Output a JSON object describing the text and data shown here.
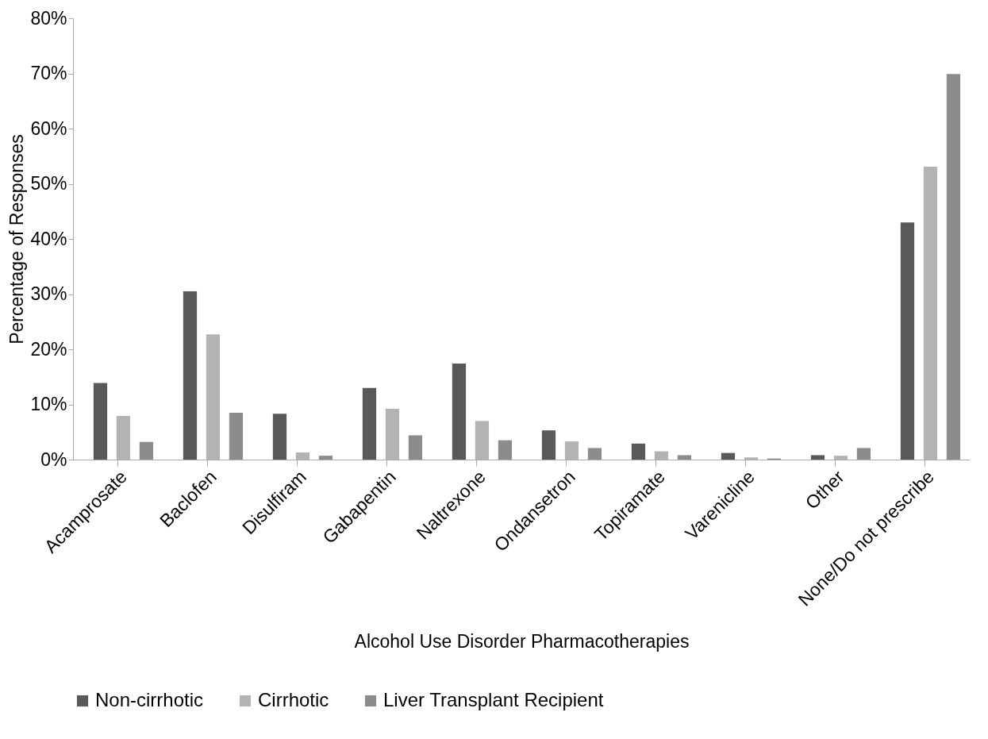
{
  "chart_data": {
    "type": "bar",
    "xlabel": "Alcohol Use Disorder Pharmacotherapies",
    "ylabel": "Percentage of Responses",
    "categories": [
      "Acamprosate",
      "Baclofen",
      "Disulfiram",
      "Gabapentin",
      "Naltrexone",
      "Ondansetron",
      "Topiramate",
      "Varenicline",
      "Other",
      "None/Do not prescribe"
    ],
    "series": [
      {
        "name": "Non-cirrhotic",
        "color": "#595959",
        "values": [
          13.9,
          30.5,
          8.3,
          13.0,
          17.4,
          5.3,
          2.9,
          1.2,
          0.8,
          43.0
        ]
      },
      {
        "name": "Cirrhotic",
        "color": "#b3b3b3",
        "values": [
          7.9,
          22.7,
          1.3,
          9.2,
          7.0,
          3.3,
          1.5,
          0.4,
          0.7,
          53.1
        ]
      },
      {
        "name": "Liver Transplant Recipient",
        "color": "#8c8c8c",
        "values": [
          3.2,
          8.5,
          0.7,
          4.4,
          3.5,
          2.1,
          0.8,
          0.2,
          2.1,
          69.9
        ]
      }
    ],
    "ylim": [
      0,
      80
    ],
    "yticks": [
      {
        "value": 0,
        "label": "0%"
      },
      {
        "value": 10,
        "label": "10%"
      },
      {
        "value": 20,
        "label": "20%"
      },
      {
        "value": 30,
        "label": "30%"
      },
      {
        "value": 40,
        "label": "40%"
      },
      {
        "value": 50,
        "label": "50%"
      },
      {
        "value": 60,
        "label": "60%"
      },
      {
        "value": 70,
        "label": "70%"
      },
      {
        "value": 80,
        "label": "80%"
      }
    ],
    "grid": false,
    "legend": "bottom"
  }
}
